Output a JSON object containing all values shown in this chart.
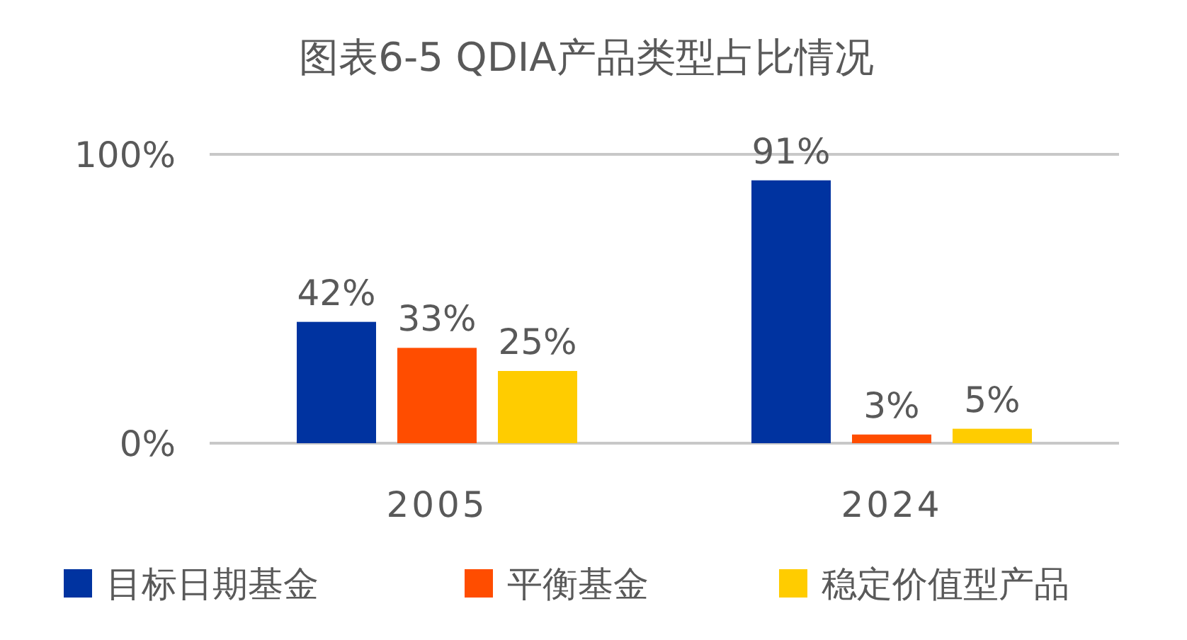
{
  "chart_data": {
    "type": "bar",
    "title": "图表6-5 QDIA产品类型占比情况",
    "categories": [
      "2005",
      "2024"
    ],
    "series": [
      {
        "name": "目标日期基金",
        "color": "#0033a0",
        "values": [
          42,
          91
        ],
        "value_labels": [
          "42%",
          "91%"
        ]
      },
      {
        "name": "平衡基金",
        "color": "#ff4d00",
        "values": [
          33,
          3
        ],
        "value_labels": [
          "33%",
          "3%"
        ]
      },
      {
        "name": "稳定价值型产品",
        "color": "#ffcc00",
        "values": [
          25,
          5
        ],
        "value_labels": [
          "25%",
          "5%"
        ]
      }
    ],
    "ylim": [
      0,
      100
    ],
    "yticks": [
      {
        "value": 0,
        "label": "0%"
      },
      {
        "value": 100,
        "label": "100%"
      }
    ],
    "legend": "bottom"
  }
}
